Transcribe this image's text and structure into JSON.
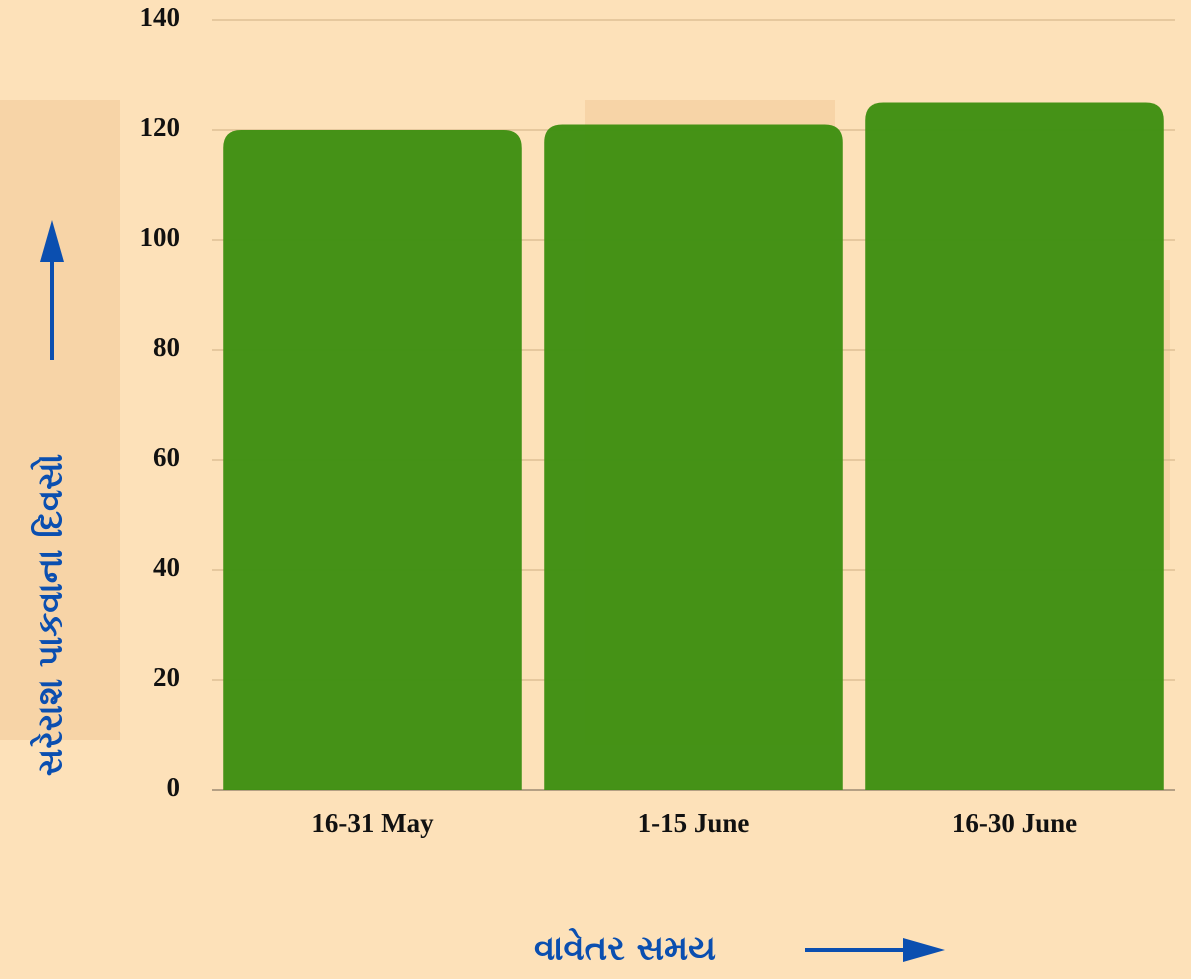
{
  "chart_data": {
    "type": "bar",
    "categories": [
      "16-31 May",
      "1-15 June",
      "16-30 June"
    ],
    "values": [
      120,
      121,
      125
    ],
    "color": "#3f8f12",
    "ylim": [
      0,
      140
    ],
    "yticks": [
      0,
      20,
      40,
      60,
      80,
      100,
      120,
      140
    ],
    "grid": true,
    "ylabel": "સરેરાશ પાકવાના દિવસો",
    "xlabel": "વાવેતર સમય"
  }
}
